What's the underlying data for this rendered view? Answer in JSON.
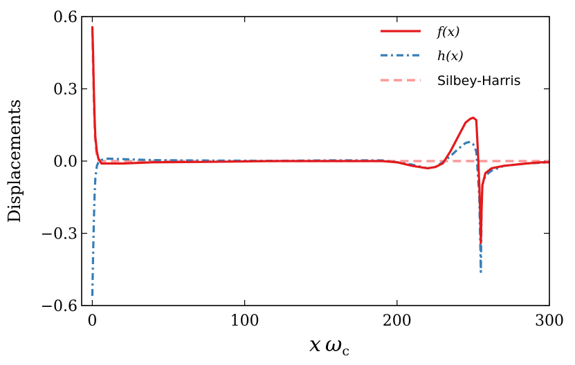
{
  "chart_data": {
    "type": "line",
    "title": "",
    "xlabel": "x ω_c",
    "xlabel_main": "x",
    "xlabel_greek": "ω",
    "xlabel_sub": "c",
    "ylabel": "Displacements",
    "xlim": [
      -7,
      300
    ],
    "ylim": [
      -0.6,
      0.6
    ],
    "x_ticks": [
      0,
      100,
      200,
      300
    ],
    "x_tick_labels": [
      "0",
      "100",
      "200",
      "300"
    ],
    "y_ticks": [
      -0.6,
      -0.3,
      0.0,
      0.3,
      0.6
    ],
    "y_tick_labels": [
      "−0.6",
      "−0.3",
      "0.0",
      "0.3",
      "0.6"
    ],
    "grid": false,
    "legend_position": "top-right",
    "series": [
      {
        "name": "f(x)",
        "legend_label": "f(x)",
        "color": "#e41a1c",
        "style": "solid",
        "points": [
          [
            0,
            0.56
          ],
          [
            0.5,
            0.45
          ],
          [
            1,
            0.3
          ],
          [
            1.5,
            0.18
          ],
          [
            2,
            0.1
          ],
          [
            3,
            0.04
          ],
          [
            4,
            0.01
          ],
          [
            6,
            -0.01
          ],
          [
            10,
            -0.01
          ],
          [
            20,
            -0.01
          ],
          [
            40,
            -0.005
          ],
          [
            80,
            -0.003
          ],
          [
            120,
            0.0
          ],
          [
            160,
            0.0
          ],
          [
            190,
            0.0
          ],
          [
            200,
            -0.005
          ],
          [
            210,
            -0.02
          ],
          [
            220,
            -0.03
          ],
          [
            225,
            -0.025
          ],
          [
            230,
            -0.01
          ],
          [
            235,
            0.04
          ],
          [
            240,
            0.1
          ],
          [
            245,
            0.16
          ],
          [
            248,
            0.175
          ],
          [
            250,
            0.18
          ],
          [
            252,
            0.17
          ],
          [
            253,
            0.05
          ],
          [
            254,
            -0.1
          ],
          [
            254.5,
            -0.2
          ],
          [
            255,
            -0.34
          ],
          [
            255.5,
            -0.2
          ],
          [
            256,
            -0.1
          ],
          [
            258,
            -0.05
          ],
          [
            262,
            -0.03
          ],
          [
            270,
            -0.02
          ],
          [
            285,
            -0.01
          ],
          [
            295,
            -0.005
          ],
          [
            300,
            -0.005
          ]
        ]
      },
      {
        "name": "h(x)",
        "legend_label": "h(x)",
        "color": "#377eb8",
        "style": "dashdot",
        "points": [
          [
            0,
            -0.56
          ],
          [
            0.5,
            -0.4
          ],
          [
            1,
            -0.25
          ],
          [
            1.5,
            -0.14
          ],
          [
            2,
            -0.07
          ],
          [
            3,
            -0.02
          ],
          [
            4,
            -0.005
          ],
          [
            6,
            0.005
          ],
          [
            10,
            0.01
          ],
          [
            20,
            0.008
          ],
          [
            40,
            0.004
          ],
          [
            80,
            0.002
          ],
          [
            120,
            0.001
          ],
          [
            160,
            0.003
          ],
          [
            190,
            0.003
          ],
          [
            200,
            -0.005
          ],
          [
            210,
            -0.015
          ],
          [
            220,
            -0.03
          ],
          [
            225,
            -0.025
          ],
          [
            230,
            -0.005
          ],
          [
            235,
            0.02
          ],
          [
            240,
            0.05
          ],
          [
            245,
            0.075
          ],
          [
            248,
            0.08
          ],
          [
            250,
            0.07
          ],
          [
            252,
            0.04
          ],
          [
            253,
            -0.05
          ],
          [
            254,
            -0.15
          ],
          [
            254.5,
            -0.3
          ],
          [
            255,
            -0.46
          ],
          [
            255.5,
            -0.2
          ],
          [
            256,
            -0.1
          ],
          [
            258,
            -0.06
          ],
          [
            262,
            -0.04
          ],
          [
            270,
            -0.02
          ],
          [
            285,
            -0.01
          ],
          [
            300,
            -0.005
          ]
        ]
      },
      {
        "name": "Silbey-Harris",
        "legend_label": "Silbey-Harris",
        "color": "#fb9a99",
        "style": "dashed",
        "points": [
          [
            0,
            0.55
          ],
          [
            0.5,
            0.4
          ],
          [
            1,
            0.25
          ],
          [
            1.5,
            0.14
          ],
          [
            2,
            0.07
          ],
          [
            3,
            0.02
          ],
          [
            4,
            0.005
          ],
          [
            6,
            0.0
          ],
          [
            300,
            0.0
          ]
        ]
      }
    ]
  }
}
